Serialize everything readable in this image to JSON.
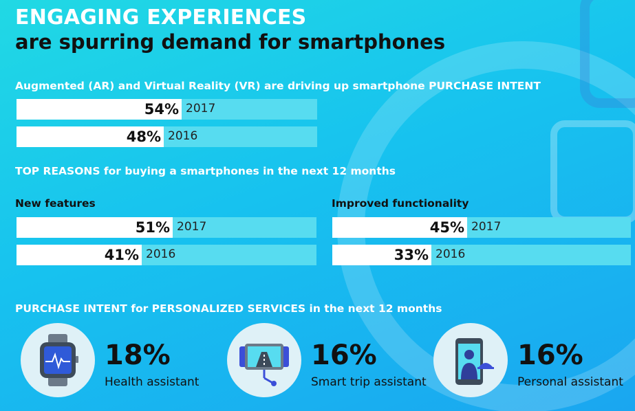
{
  "title": {
    "line1": "ENGAGING EXPERIENCES",
    "line2": "are spurring demand for smartphones"
  },
  "colors": {
    "bar_fill": "#ffffff",
    "bar_track": "#57dcf0",
    "heading_white": "#ffffff",
    "text_dark": "#111111",
    "icon_circle": "#dff1f7",
    "icon_accent": "#3b4fd8"
  },
  "chart_data": [
    {
      "type": "bar",
      "title": "Augmented (AR) and Virtual Reality (VR) are driving up smartphone PURCHASE INTENT",
      "categories": [
        "2017",
        "2016"
      ],
      "values": [
        54,
        48
      ],
      "value_labels": [
        "54%",
        "48%"
      ],
      "unit": "%"
    },
    {
      "type": "bar",
      "title": "New features",
      "categories": [
        "2017",
        "2016"
      ],
      "values": [
        51,
        41
      ],
      "value_labels": [
        "51%",
        "41%"
      ],
      "unit": "%"
    },
    {
      "type": "bar",
      "title": "Improved functionality",
      "categories": [
        "2017",
        "2016"
      ],
      "values": [
        45,
        33
      ],
      "value_labels": [
        "45%",
        "33%"
      ],
      "unit": "%"
    }
  ],
  "sections": {
    "reasons_heading": "TOP REASONS for buying a smartphones in the next 12 months",
    "services_heading": "PURCHASE INTENT for PERSONALIZED SERVICES in the next 12 months"
  },
  "services": [
    {
      "value": "18%",
      "label": "Health assistant",
      "icon": "smartwatch-icon"
    },
    {
      "value": "16%",
      "label": "Smart trip assistant",
      "icon": "road-screen-icon"
    },
    {
      "value": "16%",
      "label": "Personal assistant",
      "icon": "phone-butler-icon"
    }
  ]
}
